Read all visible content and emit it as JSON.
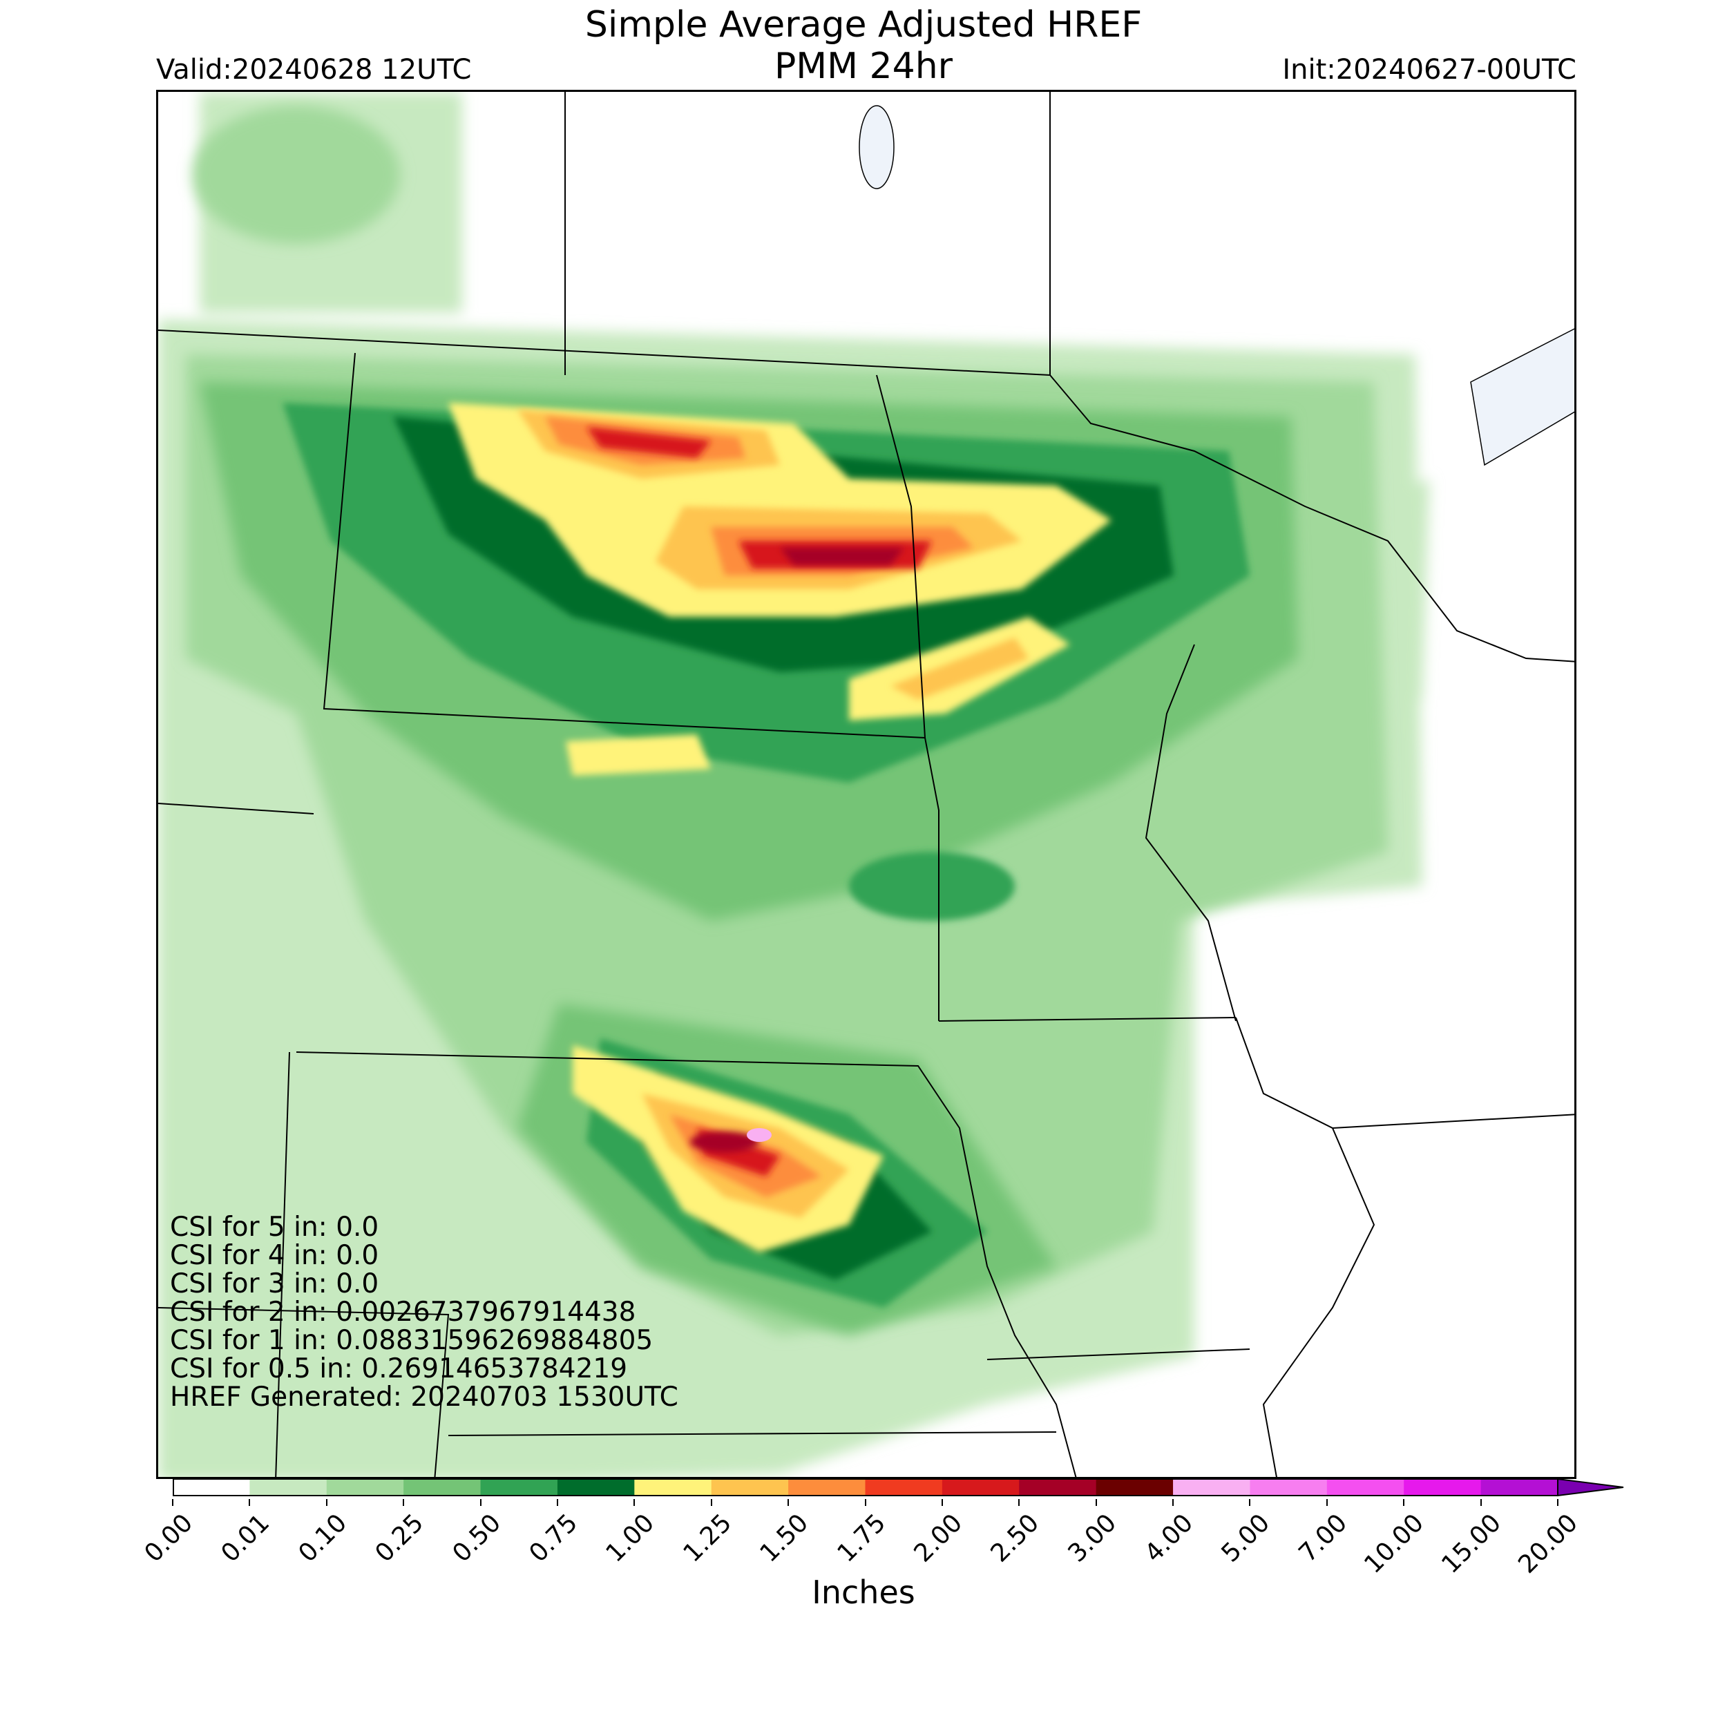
{
  "title": {
    "line1": "Simple Average Adjusted HREF",
    "line2": "PMM 24hr"
  },
  "valid": "Valid:20240628 12UTC",
  "init": "Init:20240627-00UTC",
  "stats": [
    "CSI for 5 in: 0.0",
    "CSI for 4 in: 0.0",
    "CSI for 3 in: 0.0",
    "CSI for 2 in: 0.0026737967914438",
    "CSI for 1 in: 0.08831596269884805",
    "CSI for 0.5 in: 0.26914653784219",
    "HREF Generated: 20240703 1530UTC"
  ],
  "colorbar": {
    "label": "Inches",
    "ticks": [
      "0.00",
      "0.01",
      "0.10",
      "0.25",
      "0.50",
      "0.75",
      "1.00",
      "1.25",
      "1.50",
      "1.75",
      "2.00",
      "2.50",
      "3.00",
      "4.00",
      "5.00",
      "7.00",
      "10.00",
      "15.00",
      "20.00"
    ],
    "colors": [
      "#ffffff",
      "#c7e9c0",
      "#a1d99b",
      "#74c476",
      "#31a354",
      "#006d2c",
      "#fff37a",
      "#fec44f",
      "#fd8d3c",
      "#f03b20",
      "#d7191c",
      "#a50026",
      "#6b0000",
      "#f9b0f2",
      "#f77ef0",
      "#f44ff0",
      "#e619ec",
      "#b410d4"
    ],
    "extend_color": "#7a00b0"
  },
  "map": {
    "lake_color": "#eef3fa",
    "border_color": "#000000"
  }
}
